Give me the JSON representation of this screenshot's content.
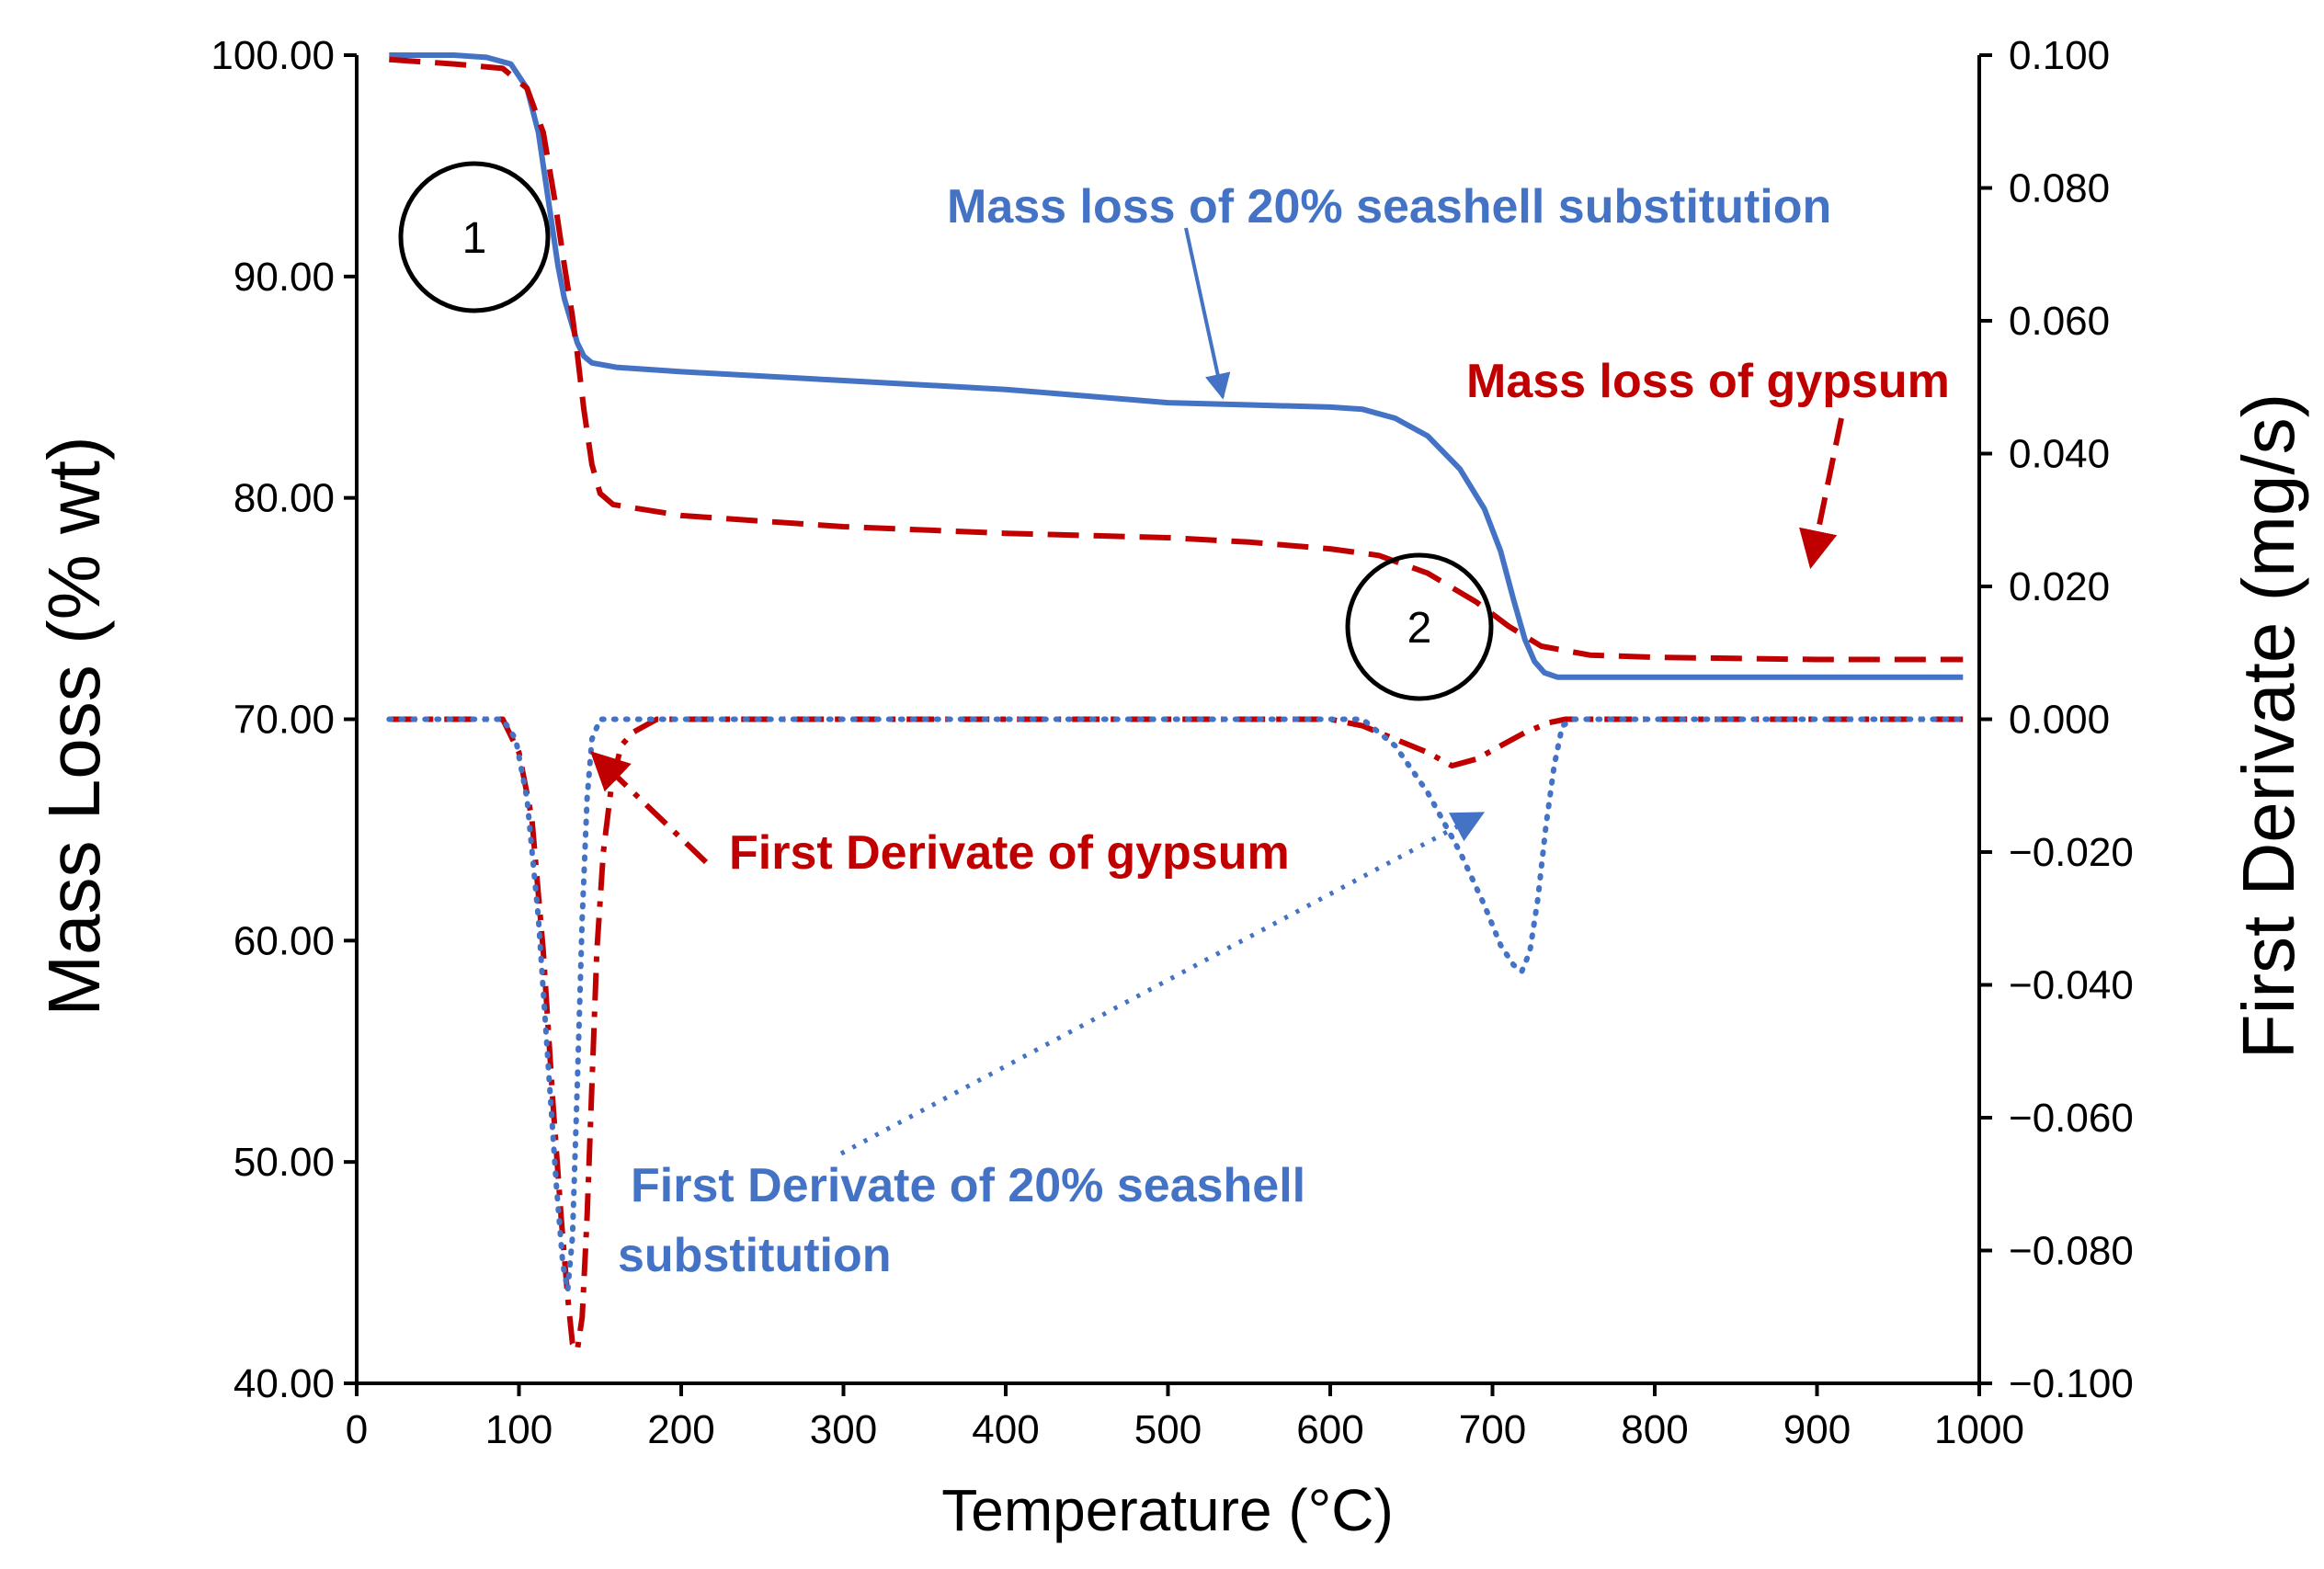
{
  "chart_data": {
    "type": "line",
    "xlabel": "Temperature (°C)",
    "ylabel_left": "Mass Loss (% wt)",
    "ylabel_right": "First Derivate (mg/s)",
    "xlim": [
      0,
      1000
    ],
    "ylim_left": [
      40,
      100
    ],
    "ylim_right": [
      -0.1,
      0.1
    ],
    "x_ticks": [
      "0",
      "100",
      "200",
      "300",
      "400",
      "500",
      "600",
      "700",
      "800",
      "900",
      "1000"
    ],
    "y_left_ticks": [
      "40.00",
      "50.00",
      "60.00",
      "70.00",
      "80.00",
      "90.00",
      "100.00"
    ],
    "y_right_ticks": [
      "−0.100",
      "−0.080",
      "−0.060",
      "−0.040",
      "−0.020",
      "0.000",
      "0.020",
      "0.040",
      "0.060",
      "0.080",
      "0.100"
    ],
    "grid": false,
    "series": [
      {
        "axis": "left",
        "color": "#4472c4",
        "style": "solid",
        "points": [
          [
            20,
            100.0
          ],
          [
            60,
            100.0
          ],
          [
            80,
            99.9
          ],
          [
            95,
            99.6
          ],
          [
            105,
            98.5
          ],
          [
            112,
            96.5
          ],
          [
            118,
            93.5
          ],
          [
            124,
            90.5
          ],
          [
            128,
            89.0
          ],
          [
            132,
            88.0
          ],
          [
            136,
            87.0
          ],
          [
            140,
            86.4
          ],
          [
            145,
            86.1
          ],
          [
            160,
            85.9
          ],
          [
            200,
            85.7
          ],
          [
            300,
            85.3
          ],
          [
            400,
            84.9
          ],
          [
            450,
            84.6
          ],
          [
            500,
            84.3
          ],
          [
            550,
            84.2
          ],
          [
            600,
            84.1
          ],
          [
            620,
            84.0
          ],
          [
            640,
            83.6
          ],
          [
            660,
            82.8
          ],
          [
            680,
            81.3
          ],
          [
            695,
            79.5
          ],
          [
            705,
            77.6
          ],
          [
            713,
            75.4
          ],
          [
            720,
            73.6
          ],
          [
            726,
            72.6
          ],
          [
            732,
            72.1
          ],
          [
            740,
            71.9
          ],
          [
            800,
            71.9
          ],
          [
            900,
            71.9
          ],
          [
            990,
            71.9
          ]
        ]
      },
      {
        "axis": "left",
        "color": "#c00000",
        "style": "dashed",
        "points": [
          [
            20,
            99.8
          ],
          [
            60,
            99.6
          ],
          [
            90,
            99.4
          ],
          [
            105,
            98.5
          ],
          [
            115,
            96.5
          ],
          [
            122,
            93.5
          ],
          [
            128,
            90.5
          ],
          [
            133,
            88.2
          ],
          [
            136,
            86.5
          ],
          [
            140,
            84.0
          ],
          [
            145,
            81.5
          ],
          [
            150,
            80.2
          ],
          [
            158,
            79.7
          ],
          [
            200,
            79.2
          ],
          [
            300,
            78.7
          ],
          [
            400,
            78.4
          ],
          [
            500,
            78.2
          ],
          [
            550,
            78.0
          ],
          [
            600,
            77.7
          ],
          [
            630,
            77.4
          ],
          [
            660,
            76.6
          ],
          [
            690,
            75.3
          ],
          [
            710,
            74.2
          ],
          [
            730,
            73.3
          ],
          [
            760,
            72.9
          ],
          [
            800,
            72.8
          ],
          [
            900,
            72.7
          ],
          [
            990,
            72.7
          ]
        ]
      },
      {
        "axis": "right",
        "color": "#c00000",
        "style": "dash-dot",
        "points": [
          [
            20,
            0.0
          ],
          [
            90,
            0.0
          ],
          [
            100,
            -0.005
          ],
          [
            108,
            -0.015
          ],
          [
            115,
            -0.035
          ],
          [
            121,
            -0.058
          ],
          [
            126,
            -0.075
          ],
          [
            130,
            -0.087
          ],
          [
            133,
            -0.094
          ],
          [
            136,
            -0.095
          ],
          [
            139,
            -0.09
          ],
          [
            142,
            -0.075
          ],
          [
            145,
            -0.055
          ],
          [
            148,
            -0.035
          ],
          [
            152,
            -0.02
          ],
          [
            157,
            -0.01
          ],
          [
            163,
            -0.004
          ],
          [
            170,
            -0.002
          ],
          [
            185,
            0.0
          ],
          [
            600,
            0.0
          ],
          [
            620,
            -0.001
          ],
          [
            640,
            -0.003
          ],
          [
            660,
            -0.005
          ],
          [
            675,
            -0.007
          ],
          [
            690,
            -0.006
          ],
          [
            705,
            -0.004
          ],
          [
            720,
            -0.002
          ],
          [
            735,
            -0.0005
          ],
          [
            745,
            0.0
          ],
          [
            990,
            0.0
          ]
        ]
      },
      {
        "axis": "right",
        "color": "#4472c4",
        "style": "dotted",
        "points": [
          [
            20,
            0.0
          ],
          [
            90,
            0.0
          ],
          [
            98,
            -0.003
          ],
          [
            105,
            -0.012
          ],
          [
            112,
            -0.03
          ],
          [
            118,
            -0.052
          ],
          [
            123,
            -0.07
          ],
          [
            127,
            -0.082
          ],
          [
            130,
            -0.086
          ],
          [
            133,
            -0.078
          ],
          [
            136,
            -0.055
          ],
          [
            139,
            -0.03
          ],
          [
            142,
            -0.012
          ],
          [
            145,
            -0.003
          ],
          [
            150,
            0.0
          ],
          [
            620,
            0.0
          ],
          [
            640,
            -0.004
          ],
          [
            660,
            -0.011
          ],
          [
            680,
            -0.02
          ],
          [
            695,
            -0.028
          ],
          [
            705,
            -0.034
          ],
          [
            713,
            -0.037
          ],
          [
            718,
            -0.038
          ],
          [
            723,
            -0.035
          ],
          [
            728,
            -0.027
          ],
          [
            733,
            -0.016
          ],
          [
            738,
            -0.007
          ],
          [
            743,
            -0.001
          ],
          [
            750,
            0.0
          ],
          [
            990,
            0.0
          ]
        ]
      }
    ],
    "annotations": [
      {
        "text": "Mass loss of 20% seashell substitution",
        "color": "#4472c4"
      },
      {
        "text": "Mass loss of gypsum",
        "color": "#c00000"
      },
      {
        "text": "First Derivate of gypsum",
        "color": "#c00000"
      },
      {
        "text": "First Derivate of 20% seashell",
        "text2": "substitution",
        "color": "#4472c4"
      }
    ],
    "step_markers": [
      "1",
      "2"
    ]
  }
}
